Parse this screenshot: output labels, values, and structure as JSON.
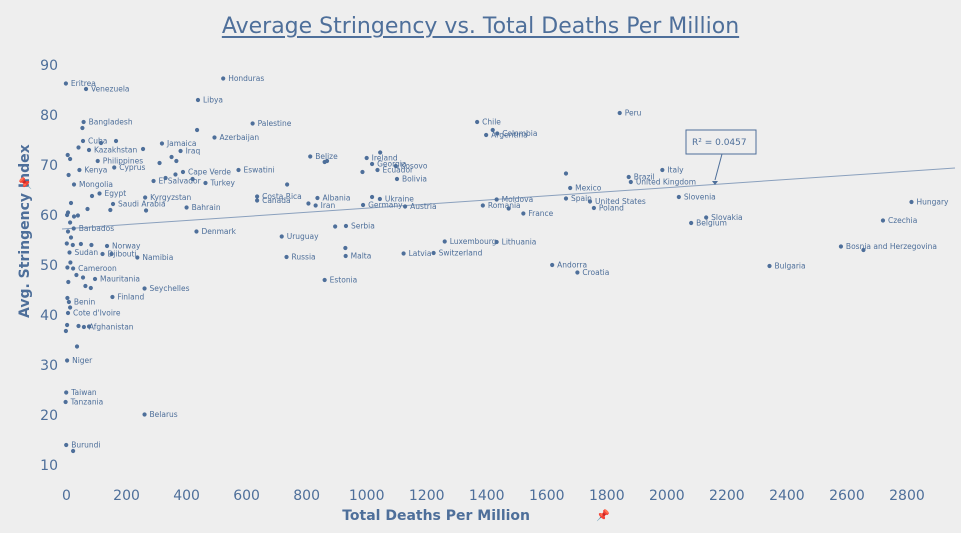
{
  "title": "Average Stringency vs. Total Deaths Per Million",
  "pin_glyph": "📌",
  "chart_data": {
    "type": "scatter",
    "title": "Average Stringency vs. Total Deaths Per Million",
    "xlabel": "Total Deaths Per Million",
    "ylabel": "Avg. Stringency Index",
    "xlim": [
      -15,
      2960
    ],
    "ylim": [
      8,
      92
    ],
    "xticks": [
      0,
      200,
      400,
      600,
      800,
      1000,
      1200,
      1400,
      1600,
      1800,
      2000,
      2200,
      2400,
      2600,
      2800
    ],
    "yticks": [
      10,
      20,
      30,
      40,
      50,
      60,
      70,
      80,
      90
    ],
    "grid": false,
    "color": "#4e6f9a",
    "trendline": {
      "x": [
        -15,
        2960
      ],
      "y": [
        57.2,
        69.4
      ],
      "r2_label": "R² = 0.0457"
    },
    "points": [
      {
        "x": -2,
        "y": 86.3,
        "label": "Eritrea"
      },
      {
        "x": 65,
        "y": 85.2,
        "label": "Venezuela"
      },
      {
        "x": 522,
        "y": 87.3,
        "label": "Honduras"
      },
      {
        "x": 438,
        "y": 83.0,
        "label": "Libya"
      },
      {
        "x": 57,
        "y": 78.6,
        "label": "Bangladesh"
      },
      {
        "x": 620,
        "y": 78.3,
        "label": "Palestine"
      },
      {
        "x": 53,
        "y": 77.4,
        "label": ""
      },
      {
        "x": 435,
        "y": 77.0,
        "label": ""
      },
      {
        "x": 1368,
        "y": 78.6,
        "label": "Chile"
      },
      {
        "x": 1420,
        "y": 77.0,
        "label": ""
      },
      {
        "x": 1435,
        "y": 76.3,
        "label": "Colombia"
      },
      {
        "x": 1398,
        "y": 76.0,
        "label": "Argentina"
      },
      {
        "x": 1843,
        "y": 80.4,
        "label": "Peru"
      },
      {
        "x": 55,
        "y": 74.8,
        "label": "Cuba"
      },
      {
        "x": 115,
        "y": 74.4,
        "label": ""
      },
      {
        "x": 165,
        "y": 74.8,
        "label": ""
      },
      {
        "x": 318,
        "y": 74.3,
        "label": "Jamaica"
      },
      {
        "x": 493,
        "y": 75.5,
        "label": "Azerbaijan"
      },
      {
        "x": 40,
        "y": 73.5,
        "label": ""
      },
      {
        "x": 75,
        "y": 73.0,
        "label": "Kazakhstan"
      },
      {
        "x": 255,
        "y": 73.2,
        "label": ""
      },
      {
        "x": 380,
        "y": 72.8,
        "label": "Iraq"
      },
      {
        "x": 4,
        "y": 72.0,
        "label": ""
      },
      {
        "x": 12,
        "y": 71.2,
        "label": ""
      },
      {
        "x": 104,
        "y": 70.8,
        "label": "Philippines"
      },
      {
        "x": 350,
        "y": 71.6,
        "label": ""
      },
      {
        "x": 366,
        "y": 70.8,
        "label": ""
      },
      {
        "x": 310,
        "y": 70.4,
        "label": ""
      },
      {
        "x": 1045,
        "y": 72.5,
        "label": ""
      },
      {
        "x": 1000,
        "y": 71.4,
        "label": "Ireland"
      },
      {
        "x": 812,
        "y": 71.7,
        "label": "Belize"
      },
      {
        "x": 868,
        "y": 70.8,
        "label": ""
      },
      {
        "x": 860,
        "y": 70.6,
        "label": ""
      },
      {
        "x": 1018,
        "y": 70.2,
        "label": "Georgia"
      },
      {
        "x": 1097,
        "y": 69.8,
        "label": "Kosovo"
      },
      {
        "x": 1664,
        "y": 68.3,
        "label": ""
      },
      {
        "x": 7,
        "y": 68.0,
        "label": ""
      },
      {
        "x": 159,
        "y": 69.5,
        "label": "Cyprus"
      },
      {
        "x": 43,
        "y": 69.0,
        "label": "Kenya"
      },
      {
        "x": 388,
        "y": 68.6,
        "label": "Cape Verde"
      },
      {
        "x": 363,
        "y": 68.1,
        "label": ""
      },
      {
        "x": 330,
        "y": 67.4,
        "label": ""
      },
      {
        "x": 420,
        "y": 67.2,
        "label": ""
      },
      {
        "x": 573,
        "y": 69.0,
        "label": "Eswatini"
      },
      {
        "x": 986,
        "y": 68.6,
        "label": ""
      },
      {
        "x": 1036,
        "y": 69.0,
        "label": "Ecuador"
      },
      {
        "x": 1101,
        "y": 67.2,
        "label": "Bolivia"
      },
      {
        "x": 1873,
        "y": 67.6,
        "label": "Brazil"
      },
      {
        "x": 1985,
        "y": 69.0,
        "label": "Italy"
      },
      {
        "x": 1880,
        "y": 66.6,
        "label": "United Kingdom"
      },
      {
        "x": 1678,
        "y": 65.4,
        "label": "Mexico"
      },
      {
        "x": 25,
        "y": 66.1,
        "label": "Mongolia"
      },
      {
        "x": 290,
        "y": 66.8,
        "label": "El Salvador"
      },
      {
        "x": 463,
        "y": 66.4,
        "label": "Turkey"
      },
      {
        "x": 735,
        "y": 66.1,
        "label": ""
      },
      {
        "x": 110,
        "y": 64.3,
        "label": "Egypt"
      },
      {
        "x": 85,
        "y": 63.8,
        "label": ""
      },
      {
        "x": 262,
        "y": 63.5,
        "label": "Kyrgyzstan"
      },
      {
        "x": 635,
        "y": 63.7,
        "label": "Costa Rica"
      },
      {
        "x": 836,
        "y": 63.4,
        "label": "Albania"
      },
      {
        "x": 1018,
        "y": 63.6,
        "label": ""
      },
      {
        "x": 1044,
        "y": 63.2,
        "label": "Ukraine"
      },
      {
        "x": 1433,
        "y": 63.1,
        "label": "Moldova"
      },
      {
        "x": 1664,
        "y": 63.3,
        "label": "Spain"
      },
      {
        "x": 1744,
        "y": 62.7,
        "label": "United States"
      },
      {
        "x": 2040,
        "y": 63.6,
        "label": "Slovenia"
      },
      {
        "x": 2815,
        "y": 62.6,
        "label": "Hungary"
      },
      {
        "x": 5,
        "y": 60.5,
        "label": ""
      },
      {
        "x": 15,
        "y": 62.4,
        "label": ""
      },
      {
        "x": 38,
        "y": 59.9,
        "label": ""
      },
      {
        "x": 70,
        "y": 61.2,
        "label": ""
      },
      {
        "x": 146,
        "y": 61.0,
        "label": ""
      },
      {
        "x": 155,
        "y": 62.2,
        "label": "Saudi Arabia"
      },
      {
        "x": 400,
        "y": 61.5,
        "label": "Bahrain"
      },
      {
        "x": 265,
        "y": 60.9,
        "label": ""
      },
      {
        "x": 635,
        "y": 62.9,
        "label": "Canada"
      },
      {
        "x": 806,
        "y": 62.3,
        "label": ""
      },
      {
        "x": 830,
        "y": 61.9,
        "label": "Iran"
      },
      {
        "x": 988,
        "y": 62.0,
        "label": "Germany"
      },
      {
        "x": 1128,
        "y": 61.7,
        "label": "Austria"
      },
      {
        "x": 1387,
        "y": 61.9,
        "label": "Romania"
      },
      {
        "x": 1473,
        "y": 61.3,
        "label": ""
      },
      {
        "x": 1522,
        "y": 60.3,
        "label": "France"
      },
      {
        "x": 1757,
        "y": 61.4,
        "label": "Poland"
      },
      {
        "x": 2081,
        "y": 58.4,
        "label": "Belgium"
      },
      {
        "x": 2131,
        "y": 59.5,
        "label": "Slovakia"
      },
      {
        "x": 2720,
        "y": 58.9,
        "label": "Czechia"
      },
      {
        "x": 2,
        "y": 60.0,
        "label": ""
      },
      {
        "x": 25,
        "y": 59.7,
        "label": ""
      },
      {
        "x": 12,
        "y": 58.5,
        "label": ""
      },
      {
        "x": 24,
        "y": 57.3,
        "label": "Barbados"
      },
      {
        "x": 5,
        "y": 56.7,
        "label": ""
      },
      {
        "x": 15,
        "y": 55.5,
        "label": ""
      },
      {
        "x": 433,
        "y": 56.7,
        "label": "Denmark"
      },
      {
        "x": 717,
        "y": 55.7,
        "label": "Uruguay"
      },
      {
        "x": 895,
        "y": 57.7,
        "label": ""
      },
      {
        "x": 931,
        "y": 57.8,
        "label": "Serbia"
      },
      {
        "x": 1,
        "y": 54.3,
        "label": ""
      },
      {
        "x": 21,
        "y": 54.0,
        "label": ""
      },
      {
        "x": 48,
        "y": 54.2,
        "label": ""
      },
      {
        "x": 83,
        "y": 54.0,
        "label": ""
      },
      {
        "x": 135,
        "y": 53.8,
        "label": "Norway"
      },
      {
        "x": 929,
        "y": 53.4,
        "label": ""
      },
      {
        "x": 10,
        "y": 52.5,
        "label": "Sudan"
      },
      {
        "x": 120,
        "y": 52.2,
        "label": "Djibouti"
      },
      {
        "x": 150,
        "y": 52.2,
        "label": ""
      },
      {
        "x": 236,
        "y": 51.5,
        "label": "Namibia"
      },
      {
        "x": 733,
        "y": 51.6,
        "label": "Russia"
      },
      {
        "x": 930,
        "y": 51.8,
        "label": "Malta"
      },
      {
        "x": 1123,
        "y": 52.3,
        "label": "Latvia"
      },
      {
        "x": 1223,
        "y": 52.4,
        "label": "Switzerland"
      },
      {
        "x": 1260,
        "y": 54.7,
        "label": "Luxembourg"
      },
      {
        "x": 1433,
        "y": 54.6,
        "label": "Lithuania"
      },
      {
        "x": 2580,
        "y": 53.7,
        "label": "Bosnia and Herzegovina"
      },
      {
        "x": 2655,
        "y": 53.0,
        "label": ""
      },
      {
        "x": 13,
        "y": 50.5,
        "label": ""
      },
      {
        "x": 3,
        "y": 49.5,
        "label": ""
      },
      {
        "x": 22,
        "y": 49.3,
        "label": "Cameroon"
      },
      {
        "x": 1618,
        "y": 50.0,
        "label": "Andorra"
      },
      {
        "x": 1702,
        "y": 48.5,
        "label": "Croatia"
      },
      {
        "x": 2342,
        "y": 49.8,
        "label": "Bulgaria"
      },
      {
        "x": 33,
        "y": 48.0,
        "label": ""
      },
      {
        "x": 55,
        "y": 47.5,
        "label": ""
      },
      {
        "x": 95,
        "y": 47.2,
        "label": "Mauritania"
      },
      {
        "x": 6,
        "y": 46.6,
        "label": ""
      },
      {
        "x": 63,
        "y": 45.8,
        "label": ""
      },
      {
        "x": 81,
        "y": 45.4,
        "label": ""
      },
      {
        "x": 860,
        "y": 47.0,
        "label": "Estonia"
      },
      {
        "x": 260,
        "y": 45.3,
        "label": "Seychelles"
      },
      {
        "x": 153,
        "y": 43.6,
        "label": "Finland"
      },
      {
        "x": 3,
        "y": 43.4,
        "label": ""
      },
      {
        "x": 8,
        "y": 42.6,
        "label": "Benin"
      },
      {
        "x": 12,
        "y": 41.5,
        "label": ""
      },
      {
        "x": 5,
        "y": 40.4,
        "label": "Cote d'Ivoire"
      },
      {
        "x": 2,
        "y": 38.0,
        "label": ""
      },
      {
        "x": 40,
        "y": 37.8,
        "label": ""
      },
      {
        "x": 58,
        "y": 37.6,
        "label": "Afghanistan"
      },
      {
        "x": 75,
        "y": 37.7,
        "label": ""
      },
      {
        "x": -2,
        "y": 36.8,
        "label": ""
      },
      {
        "x": 35,
        "y": 33.7,
        "label": ""
      },
      {
        "x": 2,
        "y": 30.9,
        "label": "Niger"
      },
      {
        "x": -1,
        "y": 24.5,
        "label": "Taiwan"
      },
      {
        "x": -3,
        "y": 22.6,
        "label": "Tanzania"
      },
      {
        "x": 260,
        "y": 20.1,
        "label": "Belarus"
      },
      {
        "x": -1,
        "y": 14.0,
        "label": "Burundi"
      },
      {
        "x": 22,
        "y": 12.8,
        "label": ""
      }
    ]
  }
}
